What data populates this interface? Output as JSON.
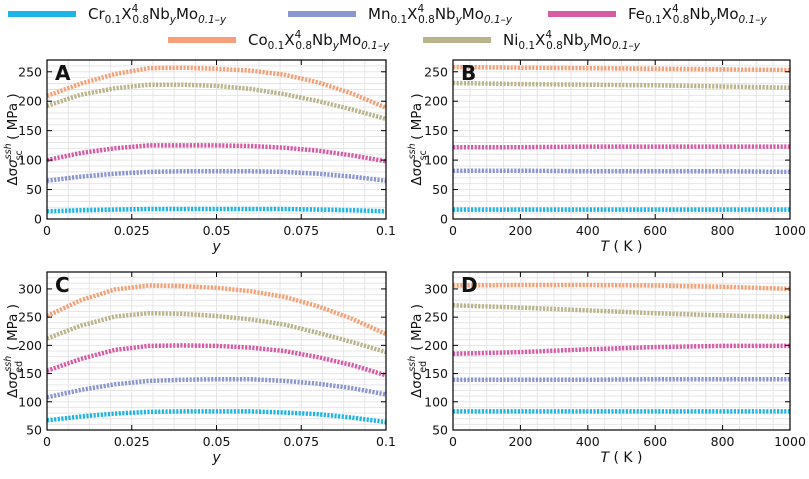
{
  "legend": [
    {
      "prefix": "Cr",
      "color": "#1eb4e6"
    },
    {
      "prefix": "Mn",
      "color": "#8a96d2"
    },
    {
      "prefix": "Fe",
      "color": "#d75aa5"
    },
    {
      "prefix": "Co",
      "color": "#f5a078"
    },
    {
      "prefix": "Ni",
      "color": "#b9b48c"
    }
  ],
  "legend_formula": {
    "base_sub": "0.1",
    "x": "X",
    "x_sup": "4",
    "x_sub": "0.8",
    "nb": "Nb",
    "nb_sub": "y",
    "mo": "Mo",
    "mo_sub": "0.1–y"
  },
  "chart_data": [
    {
      "panel": "A",
      "type": "line",
      "xlabel": "y",
      "ylabel": "Δσ",
      "ylabel_sup": "ssh",
      "ylabel_sub": "sc",
      "ylabel_unit": "( MPa )",
      "xlim": [
        0,
        0.1
      ],
      "ylim": [
        0,
        270
      ],
      "xticks": [
        0,
        0.025,
        0.05,
        0.075,
        0.1
      ],
      "xtick_labels": [
        "0",
        "0.025",
        "0.05",
        "0.075",
        "0.1"
      ],
      "yticks": [
        0,
        50,
        100,
        150,
        200,
        250
      ],
      "ytick_labels": [
        "0",
        "50",
        "100",
        "150",
        "200",
        "250"
      ],
      "x": [
        0,
        0.01,
        0.02,
        0.03,
        0.04,
        0.05,
        0.06,
        0.07,
        0.08,
        0.09,
        0.1
      ],
      "series": [
        {
          "name": "Cr",
          "values": [
            13,
            15,
            16,
            17,
            17,
            17,
            17,
            17,
            16,
            15,
            13
          ]
        },
        {
          "name": "Mn",
          "values": [
            65,
            72,
            77,
            80,
            81,
            81,
            81,
            80,
            77,
            72,
            65
          ]
        },
        {
          "name": "Fe",
          "values": [
            100,
            112,
            120,
            125,
            125,
            125,
            124,
            121,
            116,
            108,
            98
          ]
        },
        {
          "name": "Co",
          "values": [
            209,
            230,
            246,
            256,
            257,
            255,
            252,
            245,
            232,
            213,
            189
          ]
        },
        {
          "name": "Ni",
          "values": [
            192,
            211,
            222,
            228,
            228,
            226,
            221,
            212,
            200,
            186,
            170
          ]
        }
      ]
    },
    {
      "panel": "B",
      "type": "line",
      "xlabel": "T",
      "xlabel_unit": "( K )",
      "ylabel": "Δσ",
      "ylabel_sup": "ssh",
      "ylabel_sub": "sc",
      "ylabel_unit": "( MPa )",
      "xlim": [
        0,
        1000
      ],
      "ylim": [
        0,
        270
      ],
      "xticks": [
        0,
        200,
        400,
        600,
        800,
        1000
      ],
      "xtick_labels": [
        "0",
        "200",
        "400",
        "600",
        "800",
        "1000"
      ],
      "yticks": [
        0,
        50,
        100,
        150,
        200,
        250
      ],
      "ytick_labels": [
        "0",
        "50",
        "100",
        "150",
        "200",
        "250"
      ],
      "x": [
        0,
        200,
        400,
        600,
        800,
        1000
      ],
      "series": [
        {
          "name": "Cr",
          "values": [
            16,
            16,
            16,
            16,
            16,
            16
          ]
        },
        {
          "name": "Mn",
          "values": [
            82,
            82,
            81,
            81,
            81,
            80
          ]
        },
        {
          "name": "Fe",
          "values": [
            122,
            122,
            123,
            123,
            123,
            123
          ]
        },
        {
          "name": "Co",
          "values": [
            258,
            257,
            256,
            255,
            254,
            253
          ]
        },
        {
          "name": "Ni",
          "values": [
            231,
            229,
            228,
            227,
            225,
            223
          ]
        }
      ]
    },
    {
      "panel": "C",
      "type": "line",
      "xlabel": "y",
      "ylabel": "Δσ",
      "ylabel_sup": "ssh",
      "ylabel_sub": "ed",
      "ylabel_unit": "( MPa )",
      "xlim": [
        0,
        0.1
      ],
      "ylim": [
        50,
        330
      ],
      "xticks": [
        0,
        0.025,
        0.05,
        0.075,
        0.1
      ],
      "xtick_labels": [
        "0",
        "0.025",
        "0.05",
        "0.075",
        "0.1"
      ],
      "yticks": [
        50,
        100,
        150,
        200,
        250,
        300
      ],
      "ytick_labels": [
        "50",
        "100",
        "150",
        "200",
        "250",
        "300"
      ],
      "x": [
        0,
        0.01,
        0.02,
        0.03,
        0.04,
        0.05,
        0.06,
        0.07,
        0.08,
        0.09,
        0.1
      ],
      "series": [
        {
          "name": "Cr",
          "values": [
            67,
            74,
            79,
            82,
            83,
            83,
            83,
            81,
            78,
            72,
            64
          ]
        },
        {
          "name": "Mn",
          "values": [
            108,
            121,
            131,
            137,
            139,
            140,
            140,
            137,
            132,
            124,
            113
          ]
        },
        {
          "name": "Fe",
          "values": [
            155,
            176,
            192,
            199,
            200,
            199,
            196,
            190,
            179,
            165,
            147
          ]
        },
        {
          "name": "Co",
          "values": [
            252,
            280,
            299,
            306,
            305,
            302,
            296,
            286,
            269,
            247,
            220
          ]
        },
        {
          "name": "Ni",
          "values": [
            212,
            235,
            251,
            257,
            256,
            252,
            246,
            237,
            222,
            206,
            188
          ]
        }
      ]
    },
    {
      "panel": "D",
      "type": "line",
      "xlabel": "T",
      "xlabel_unit": "( K )",
      "ylabel": "Δσ",
      "ylabel_sup": "ssh",
      "ylabel_sub": "ed",
      "ylabel_unit": "( MPa )",
      "xlim": [
        0,
        1000
      ],
      "ylim": [
        50,
        330
      ],
      "xticks": [
        0,
        200,
        400,
        600,
        800,
        1000
      ],
      "xtick_labels": [
        "0",
        "200",
        "400",
        "600",
        "800",
        "1000"
      ],
      "yticks": [
        50,
        100,
        150,
        200,
        250,
        300
      ],
      "ytick_labels": [
        "50",
        "100",
        "150",
        "200",
        "250",
        "300"
      ],
      "x": [
        0,
        200,
        400,
        600,
        800,
        1000
      ],
      "series": [
        {
          "name": "Cr",
          "values": [
            83,
            83,
            83,
            83,
            83,
            83
          ]
        },
        {
          "name": "Mn",
          "values": [
            139,
            139,
            139,
            140,
            140,
            140
          ]
        },
        {
          "name": "Fe",
          "values": [
            185,
            188,
            193,
            197,
            199,
            199
          ]
        },
        {
          "name": "Co",
          "values": [
            306,
            307,
            307,
            306,
            304,
            300
          ]
        },
        {
          "name": "Ni",
          "values": [
            271,
            267,
            262,
            257,
            253,
            250
          ]
        }
      ]
    }
  ]
}
